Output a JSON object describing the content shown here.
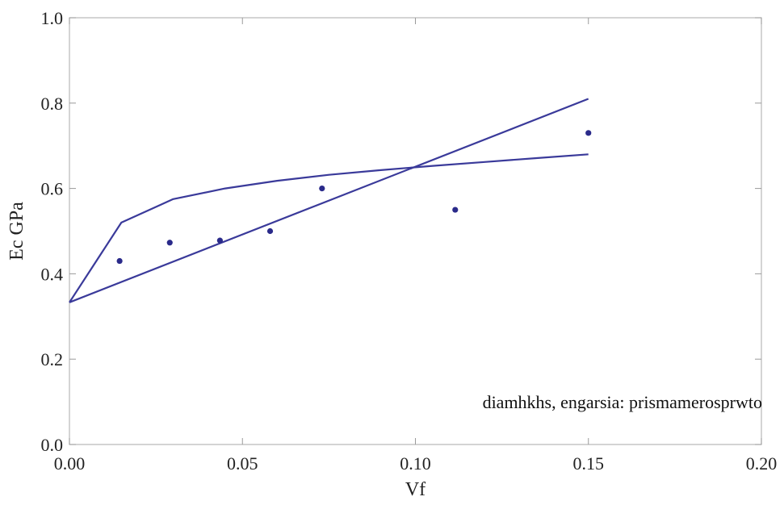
{
  "chart_data": {
    "type": "line",
    "xlabel": "Vf",
    "ylabel": "Ec GPa",
    "xlim": [
      0.0,
      0.2
    ],
    "ylim": [
      0.0,
      1.0
    ],
    "x_ticks": [
      0.0,
      0.05,
      0.1,
      0.15,
      0.2
    ],
    "x_tick_labels": [
      "0.00",
      "0.05",
      "0.10",
      "0.15",
      "0.20"
    ],
    "y_ticks": [
      0.0,
      0.2,
      0.4,
      0.6,
      0.8,
      1.0
    ],
    "y_tick_labels": [
      "0.0",
      "0.2",
      "0.4",
      "0.6",
      "0.8",
      "1.0"
    ],
    "grid": false,
    "series": [
      {
        "kind": "line",
        "color": "#3a3a9a",
        "x": [
          0.0,
          0.15
        ],
        "y": [
          0.333,
          0.81
        ]
      },
      {
        "kind": "line",
        "color": "#3a3a9a",
        "x": [
          0.0,
          0.015,
          0.03,
          0.045,
          0.06,
          0.075,
          0.09,
          0.105,
          0.12,
          0.135,
          0.15
        ],
        "y": [
          0.333,
          0.52,
          0.575,
          0.6,
          0.618,
          0.632,
          0.643,
          0.653,
          0.662,
          0.671,
          0.68
        ]
      },
      {
        "kind": "scatter",
        "color": "#2a2a8a",
        "x": [
          0.0145,
          0.029,
          0.0435,
          0.058,
          0.073,
          0.1115,
          0.15
        ],
        "y": [
          0.43,
          0.473,
          0.478,
          0.5,
          0.6,
          0.55,
          0.73
        ]
      }
    ],
    "annotation": "diamhkhs, engarsia: prismamerosprwto"
  }
}
